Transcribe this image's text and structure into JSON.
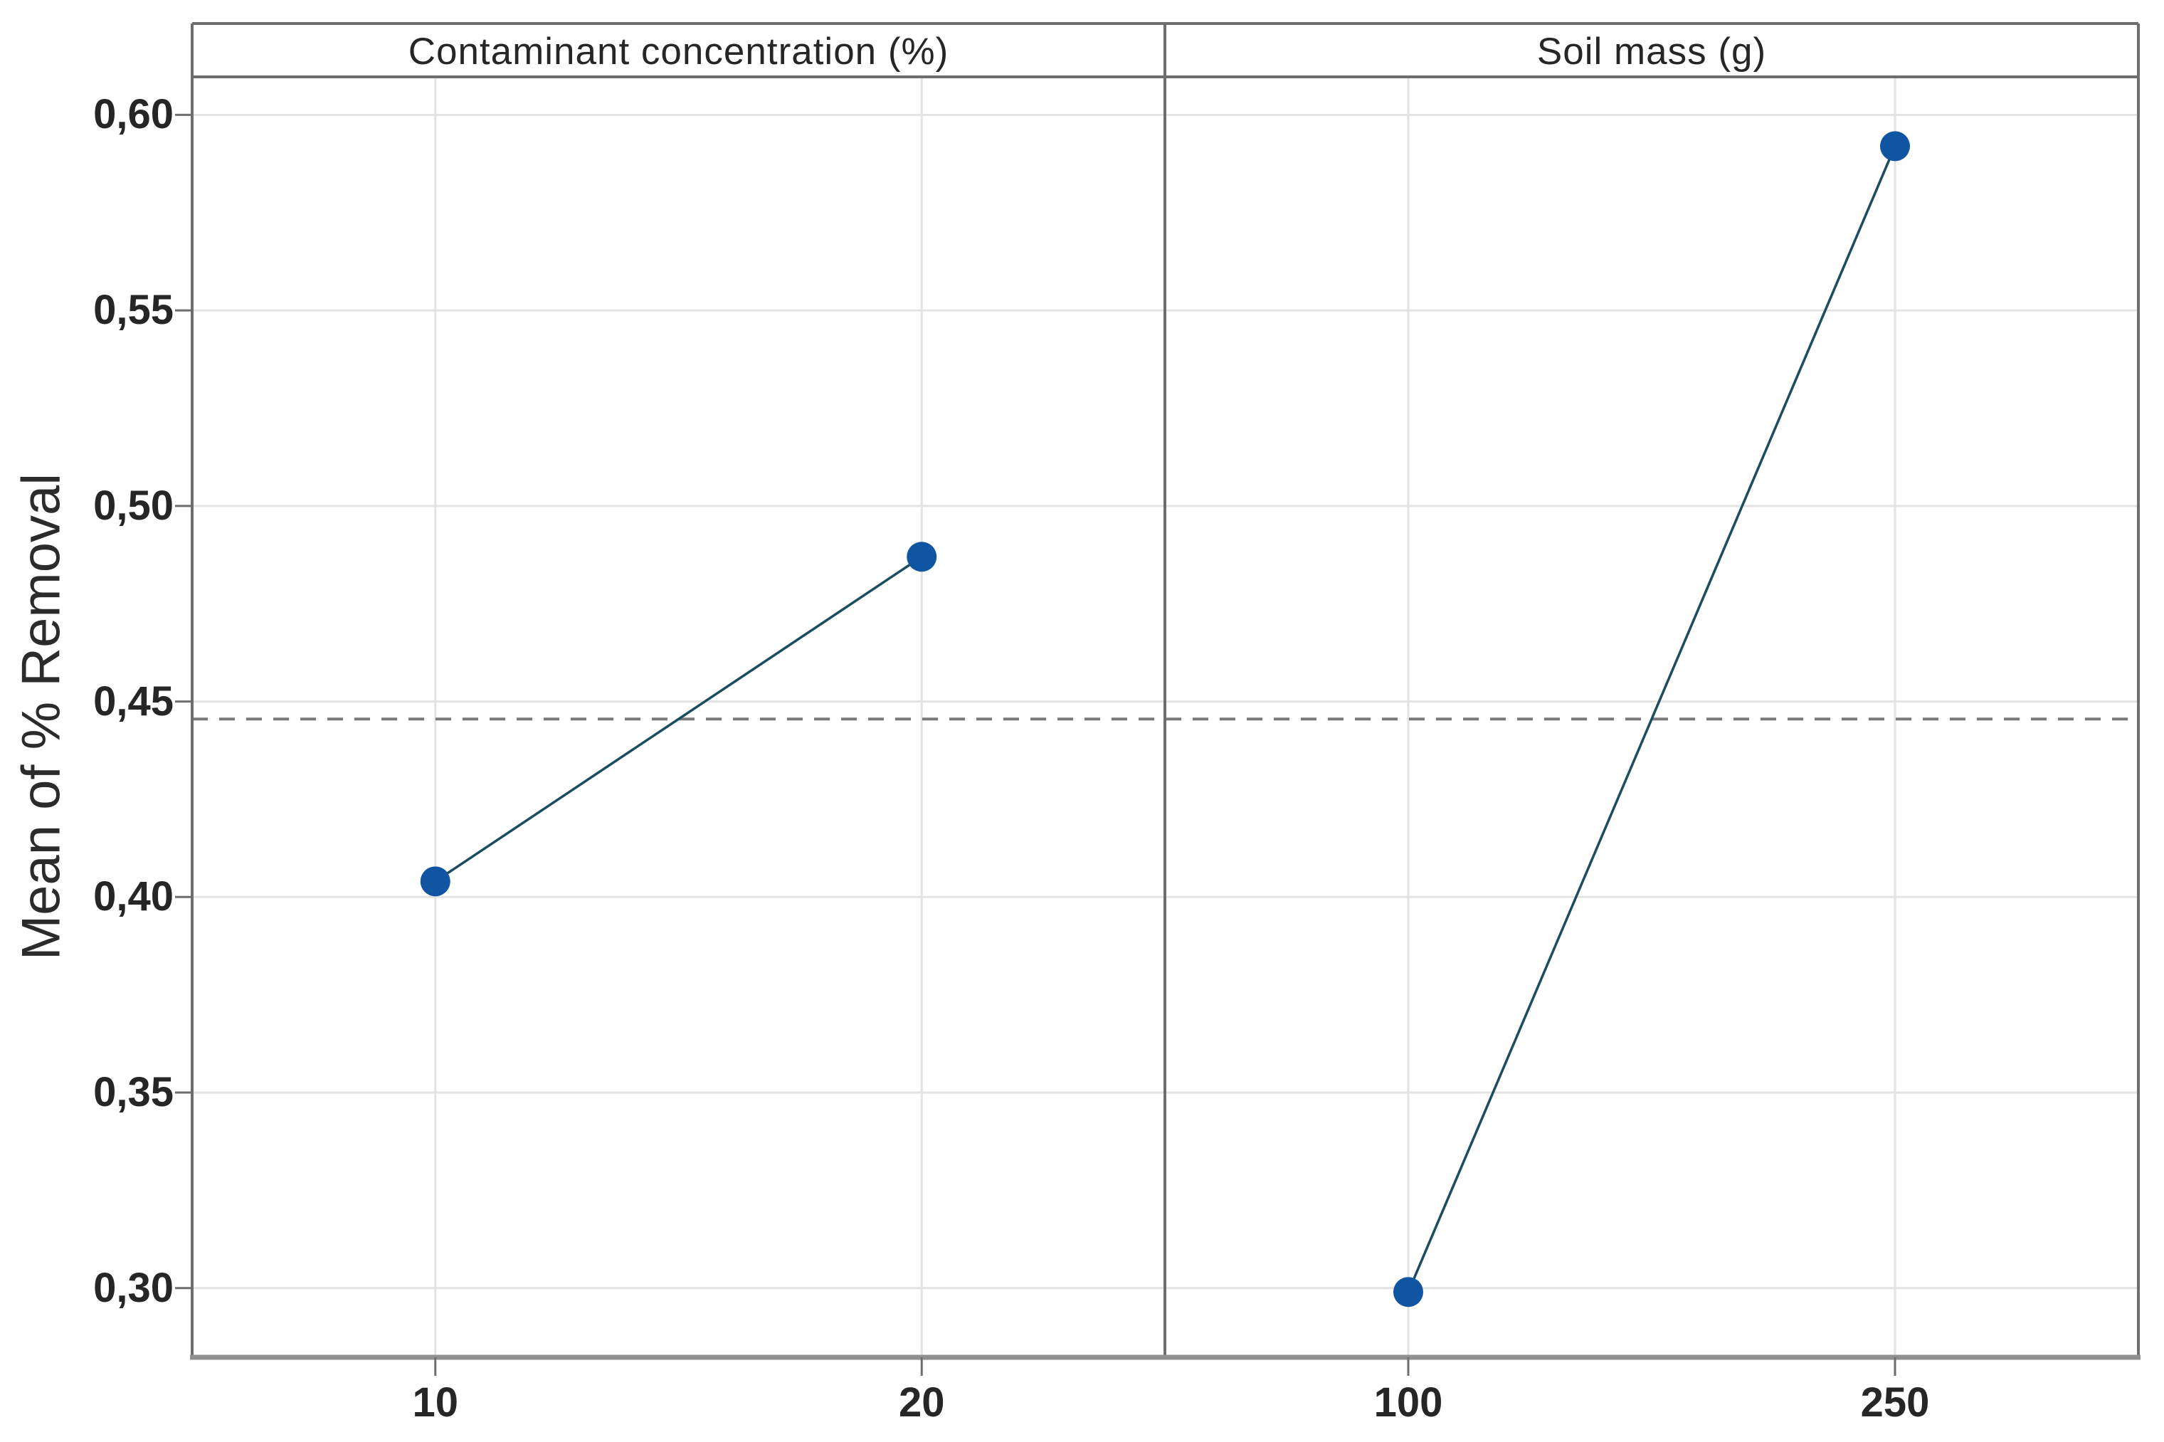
{
  "chart_data": {
    "type": "line",
    "subtype": "main-effects-plot",
    "title": "",
    "ylabel": "Mean of % Removal",
    "xlabel": "",
    "decimal_separator": ",",
    "panels": [
      {
        "title": "Contaminant concentration (%)",
        "categories": [
          "10",
          "20"
        ],
        "values": [
          0.404,
          0.487
        ]
      },
      {
        "title": "Soil mass (g)",
        "categories": [
          "100",
          "250"
        ],
        "values": [
          0.299,
          0.592
        ]
      }
    ],
    "yticks": [
      {
        "value": 0.3,
        "label": "0,30"
      },
      {
        "value": 0.35,
        "label": "0,35"
      },
      {
        "value": 0.4,
        "label": "0,40"
      },
      {
        "value": 0.45,
        "label": "0,45"
      },
      {
        "value": 0.5,
        "label": "0,50"
      },
      {
        "value": 0.55,
        "label": "0,55"
      },
      {
        "value": 0.6,
        "label": "0,60"
      }
    ],
    "ylim": [
      0.2823,
      0.6099
    ],
    "overall_mean_line": 0.4455,
    "grid": true,
    "legend": "none",
    "colors": {
      "point": "#0f55a2",
      "series_line": "#1b4d60",
      "mean_line": "#7a7a7a",
      "gridline": "#e3e3e3",
      "frame": "#6e6e6e",
      "bottom_axis": "#8f8f8f",
      "tick": "#6e6e6e",
      "text": "#262626",
      "background": "#ffffff"
    }
  }
}
